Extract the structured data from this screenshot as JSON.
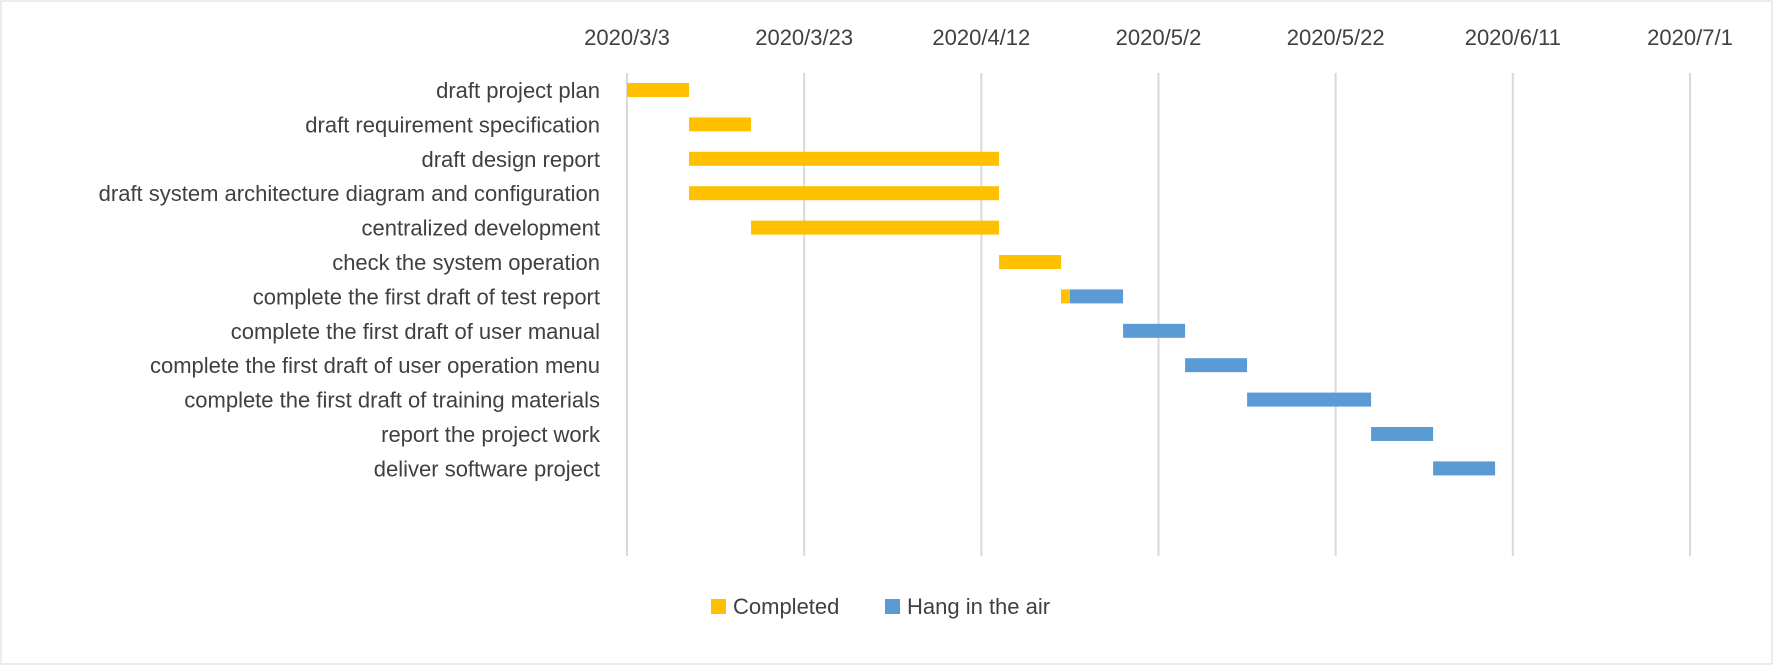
{
  "chart_data": {
    "type": "bar",
    "subtype": "gantt",
    "x_axis": {
      "type": "date",
      "ticks": [
        "2020/3/3",
        "2020/3/23",
        "2020/4/12",
        "2020/5/2",
        "2020/5/22",
        "2020/6/11",
        "2020/7/1"
      ],
      "range": [
        "2020-03-03",
        "2020-07-01"
      ],
      "position": "top"
    },
    "gridlines": true,
    "categories": [
      "draft project plan",
      "draft requirement specification",
      "draft design report",
      "draft system architecture diagram and configuration",
      "centralized development",
      "check the system operation",
      "complete the first draft of test report",
      "complete the first draft of user manual",
      "complete the first draft of user operation menu",
      "complete the first draft of training materials",
      "report the project work",
      "deliver software project"
    ],
    "tasks": [
      {
        "start": "2020-03-03",
        "completed_end": "2020-03-10",
        "end": "2020-03-10"
      },
      {
        "start": "2020-03-10",
        "completed_end": "2020-03-17",
        "end": "2020-03-17"
      },
      {
        "start": "2020-03-10",
        "completed_end": "2020-04-14",
        "end": "2020-04-14"
      },
      {
        "start": "2020-03-10",
        "completed_end": "2020-04-14",
        "end": "2020-04-14"
      },
      {
        "start": "2020-03-17",
        "completed_end": "2020-04-14",
        "end": "2020-04-14"
      },
      {
        "start": "2020-04-14",
        "completed_end": "2020-04-21",
        "end": "2020-04-21"
      },
      {
        "start": "2020-04-21",
        "completed_end": "2020-04-22",
        "end": "2020-04-28"
      },
      {
        "start": "2020-04-28",
        "completed_end": "2020-04-28",
        "end": "2020-05-05"
      },
      {
        "start": "2020-05-05",
        "completed_end": "2020-05-05",
        "end": "2020-05-12"
      },
      {
        "start": "2020-05-12",
        "completed_end": "2020-05-12",
        "end": "2020-05-26"
      },
      {
        "start": "2020-05-26",
        "completed_end": "2020-05-26",
        "end": "2020-06-02"
      },
      {
        "start": "2020-06-02",
        "completed_end": "2020-06-02",
        "end": "2020-06-09"
      }
    ],
    "series": [
      {
        "name": "Completed",
        "color": "#FFC000"
      },
      {
        "name": "Hang in the air",
        "color": "#5B9BD5"
      }
    ],
    "legend": "bottom"
  }
}
